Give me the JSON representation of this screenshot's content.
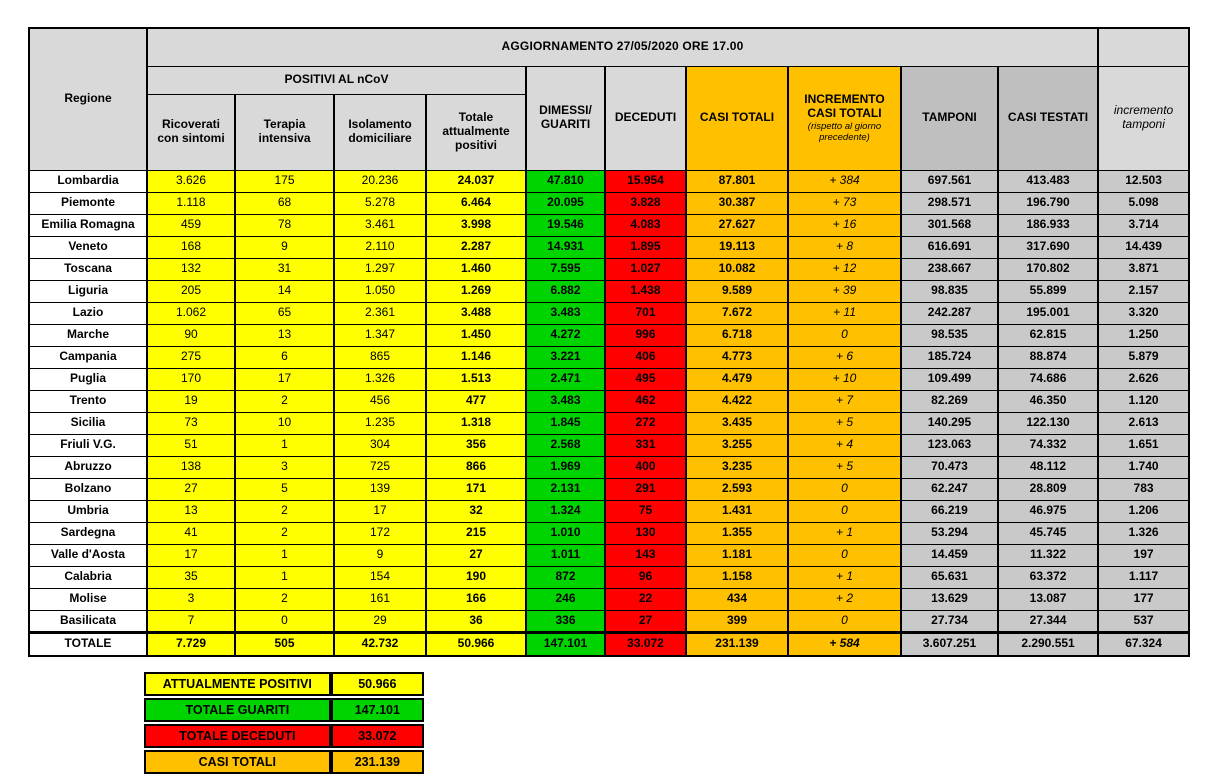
{
  "header": {
    "title": "AGGIORNAMENTO 27/05/2020 ORE 17.00",
    "regione": "Regione",
    "positivi_group": "POSITIVI AL nCoV",
    "col_ricoverati": "Ricoverati con sintomi",
    "col_terapia": "Terapia intensiva",
    "col_isolamento": "Isolamento domiciliare",
    "col_totale_positivi": "Totale attualmente positivi",
    "col_dimessi": "DIMESSI/ GUARITI",
    "col_deceduti": "DECEDUTI",
    "col_casi_totali": "CASI TOTALI",
    "col_incremento_casi": "INCREMENTO CASI TOTALI",
    "col_incremento_casi_note": "(rispetto al giorno precedente)",
    "col_tamponi": "TAMPONI",
    "col_casi_testati": "CASI TESTATI",
    "col_incremento_tamponi": "incremento tamponi"
  },
  "rows": [
    {
      "region": "Lombardia",
      "values": [
        "3.626",
        "175",
        "20.236",
        "24.037",
        "47.810",
        "15.954",
        "87.801",
        "+ 384",
        "697.561",
        "413.483",
        "12.503"
      ]
    },
    {
      "region": "Piemonte",
      "values": [
        "1.118",
        "68",
        "5.278",
        "6.464",
        "20.095",
        "3.828",
        "30.387",
        "+ 73",
        "298.571",
        "196.790",
        "5.098"
      ]
    },
    {
      "region": "Emilia Romagna",
      "values": [
        "459",
        "78",
        "3.461",
        "3.998",
        "19.546",
        "4.083",
        "27.627",
        "+ 16",
        "301.568",
        "186.933",
        "3.714"
      ]
    },
    {
      "region": "Veneto",
      "values": [
        "168",
        "9",
        "2.110",
        "2.287",
        "14.931",
        "1.895",
        "19.113",
        "+ 8",
        "616.691",
        "317.690",
        "14.439"
      ]
    },
    {
      "region": "Toscana",
      "values": [
        "132",
        "31",
        "1.297",
        "1.460",
        "7.595",
        "1.027",
        "10.082",
        "+ 12",
        "238.667",
        "170.802",
        "3.871"
      ]
    },
    {
      "region": "Liguria",
      "values": [
        "205",
        "14",
        "1.050",
        "1.269",
        "6.882",
        "1.438",
        "9.589",
        "+ 39",
        "98.835",
        "55.899",
        "2.157"
      ]
    },
    {
      "region": "Lazio",
      "values": [
        "1.062",
        "65",
        "2.361",
        "3.488",
        "3.483",
        "701",
        "7.672",
        "+ 11",
        "242.287",
        "195.001",
        "3.320"
      ]
    },
    {
      "region": "Marche",
      "values": [
        "90",
        "13",
        "1.347",
        "1.450",
        "4.272",
        "996",
        "6.718",
        "0",
        "98.535",
        "62.815",
        "1.250"
      ]
    },
    {
      "region": "Campania",
      "values": [
        "275",
        "6",
        "865",
        "1.146",
        "3.221",
        "406",
        "4.773",
        "+ 6",
        "185.724",
        "88.874",
        "5.879"
      ]
    },
    {
      "region": "Puglia",
      "values": [
        "170",
        "17",
        "1.326",
        "1.513",
        "2.471",
        "495",
        "4.479",
        "+ 10",
        "109.499",
        "74.686",
        "2.626"
      ]
    },
    {
      "region": "Trento",
      "values": [
        "19",
        "2",
        "456",
        "477",
        "3.483",
        "462",
        "4.422",
        "+ 7",
        "82.269",
        "46.350",
        "1.120"
      ]
    },
    {
      "region": "Sicilia",
      "values": [
        "73",
        "10",
        "1.235",
        "1.318",
        "1.845",
        "272",
        "3.435",
        "+ 5",
        "140.295",
        "122.130",
        "2.613"
      ]
    },
    {
      "region": "Friuli V.G.",
      "values": [
        "51",
        "1",
        "304",
        "356",
        "2.568",
        "331",
        "3.255",
        "+ 4",
        "123.063",
        "74.332",
        "1.651"
      ]
    },
    {
      "region": "Abruzzo",
      "values": [
        "138",
        "3",
        "725",
        "866",
        "1.969",
        "400",
        "3.235",
        "+ 5",
        "70.473",
        "48.112",
        "1.740"
      ]
    },
    {
      "region": "Bolzano",
      "values": [
        "27",
        "5",
        "139",
        "171",
        "2.131",
        "291",
        "2.593",
        "0",
        "62.247",
        "28.809",
        "783"
      ]
    },
    {
      "region": "Umbria",
      "values": [
        "13",
        "2",
        "17",
        "32",
        "1.324",
        "75",
        "1.431",
        "0",
        "66.219",
        "46.975",
        "1.206"
      ]
    },
    {
      "region": "Sardegna",
      "values": [
        "41",
        "2",
        "172",
        "215",
        "1.010",
        "130",
        "1.355",
        "+ 1",
        "53.294",
        "45.745",
        "1.326"
      ]
    },
    {
      "region": "Valle d'Aosta",
      "values": [
        "17",
        "1",
        "9",
        "27",
        "1.011",
        "143",
        "1.181",
        "0",
        "14.459",
        "11.322",
        "197"
      ]
    },
    {
      "region": "Calabria",
      "values": [
        "35",
        "1",
        "154",
        "190",
        "872",
        "96",
        "1.158",
        "+ 1",
        "65.631",
        "63.372",
        "1.117"
      ]
    },
    {
      "region": "Molise",
      "values": [
        "3",
        "2",
        "161",
        "166",
        "246",
        "22",
        "434",
        "+ 2",
        "13.629",
        "13.087",
        "177"
      ]
    },
    {
      "region": "Basilicata",
      "values": [
        "7",
        "0",
        "29",
        "36",
        "336",
        "27",
        "399",
        "0",
        "27.734",
        "27.344",
        "537"
      ]
    }
  ],
  "totale": {
    "region": "TOTALE",
    "values": [
      "7.729",
      "505",
      "42.732",
      "50.966",
      "147.101",
      "33.072",
      "231.139",
      "+ 584",
      "3.607.251",
      "2.290.551",
      "67.324"
    ]
  },
  "summary": [
    {
      "label": "ATTUALMENTE POSITIVI",
      "value": "50.966",
      "color": "#FFFF00"
    },
    {
      "label": "TOTALE GUARITI",
      "value": "147.101",
      "color": "#00D400"
    },
    {
      "label": "TOTALE DECEDUTI",
      "value": "33.072",
      "color": "#FF0000"
    },
    {
      "label": "CASI TOTALI",
      "value": "231.139",
      "color": "#FFC000"
    }
  ],
  "colors": {
    "yellow": "#FFFF00",
    "green": "#00D400",
    "red": "#FF0000",
    "orange": "#FFC000",
    "gray_data": "#C9C9C9",
    "gray_header": "#D9D9D9",
    "gray_header_dark": "#BFBFBF"
  }
}
